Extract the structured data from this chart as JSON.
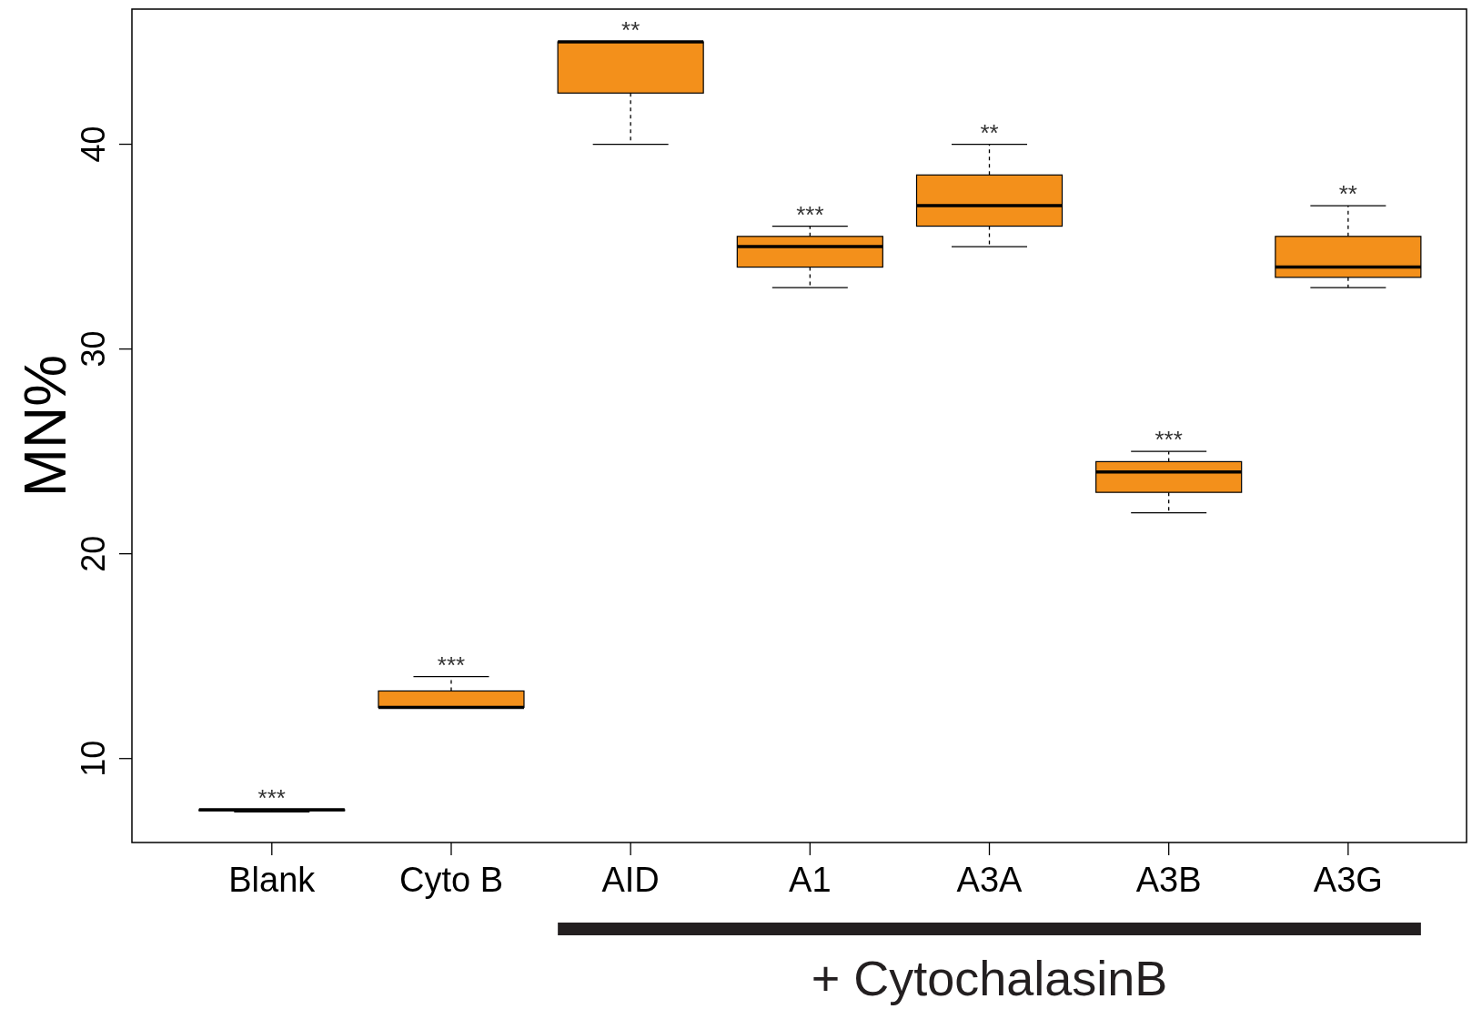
{
  "chart_data": {
    "type": "box",
    "ylabel": "MN%",
    "categories": [
      "Blank",
      "Cyto B",
      "AID",
      "A1",
      "A3A",
      "A3B",
      "A3G"
    ],
    "boxes": [
      {
        "low": 7.4,
        "q1": 7.5,
        "median": 7.5,
        "q3": 7.5,
        "high": 7.5
      },
      {
        "low": 12.5,
        "q1": 12.5,
        "median": 12.5,
        "q3": 13.3,
        "high": 14
      },
      {
        "low": 40,
        "q1": 42.5,
        "median": 45,
        "q3": 45,
        "high": 45
      },
      {
        "low": 33,
        "q1": 34,
        "median": 35,
        "q3": 35.5,
        "high": 36
      },
      {
        "low": 35,
        "q1": 36,
        "median": 37,
        "q3": 38.5,
        "high": 40
      },
      {
        "low": 22,
        "q1": 23,
        "median": 24,
        "q3": 24.5,
        "high": 25
      },
      {
        "low": 33,
        "q1": 33.5,
        "median": 34,
        "q3": 35.5,
        "high": 37
      }
    ],
    "color": "#f3901b",
    "ylim": [
      5.9,
      46.6
    ],
    "yticks": [
      10,
      20,
      30,
      40
    ],
    "annotations": [
      {
        "text": "***",
        "x": "Blank",
        "y": 7.5
      },
      {
        "text": "***",
        "x": "Cyto B",
        "y": 14
      },
      {
        "text": "**",
        "x": "AID",
        "y": 45
      },
      {
        "text": "***",
        "x": "A1",
        "y": 36
      },
      {
        "text": "**",
        "x": "A3A",
        "y": 40
      },
      {
        "text": "***",
        "x": "A3B",
        "y": 25
      },
      {
        "text": "**",
        "x": "A3G",
        "y": 37
      },
      "+ CytochalasinB"
    ]
  }
}
